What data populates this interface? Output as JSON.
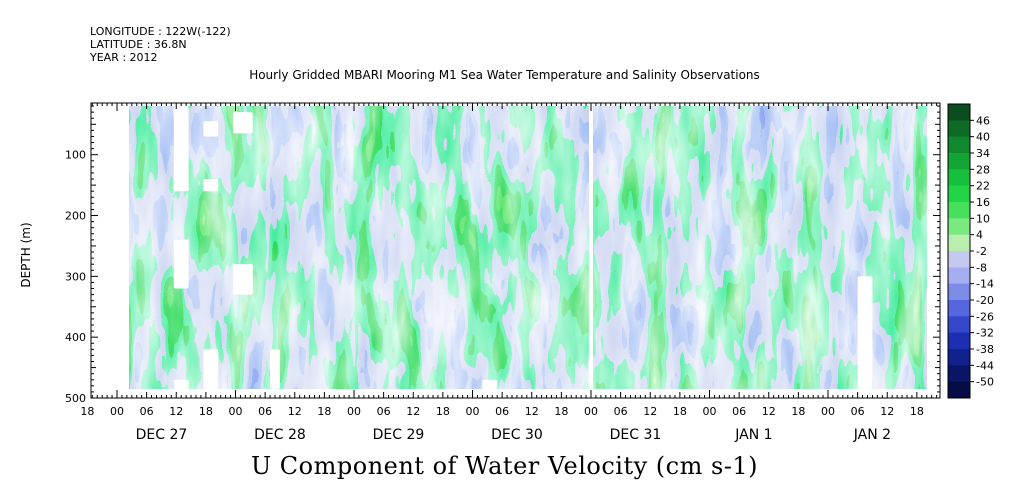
{
  "header": {
    "longitude": "LONGITUDE : 122W(-122)",
    "latitude": "LATITUDE : 36.8N",
    "year": "YEAR : 2012"
  },
  "chart_data": {
    "type": "heatmap",
    "title": "Hourly Gridded MBARI Mooring M1 Sea Water Temperature and Salinity Observations",
    "variable_title": "U Component of Water Velocity (cm s-1)",
    "ylabel": "DEPTH (m)",
    "y_axis": {
      "range": [
        500,
        15
      ],
      "inverted": true,
      "ticks": [
        100,
        200,
        300,
        400,
        500
      ]
    },
    "x_axis": {
      "hour_ticks": [
        "00",
        "06",
        "12",
        "18"
      ],
      "days": [
        "DEC 27",
        "DEC 28",
        "DEC 29",
        "DEC 30",
        "DEC 31",
        "JAN  1",
        "JAN  2"
      ],
      "first_hour_label": "00",
      "last_hour_label": "18"
    },
    "colorbar": {
      "levels": [
        46,
        40,
        34,
        28,
        22,
        16,
        10,
        4,
        -2,
        -8,
        -14,
        -20,
        -26,
        -32,
        -38,
        -44,
        -50
      ],
      "colors": [
        "#0a4d1e",
        "#0e6b26",
        "#10892d",
        "#13a535",
        "#17c03c",
        "#22d546",
        "#45e05c",
        "#7ce880",
        "#b9eeb0",
        "#c4c9f0",
        "#a4aef0",
        "#7d8be8",
        "#5566de",
        "#3346cc",
        "#1c2fb0",
        "#10208c",
        "#0a1568",
        "#060c45"
      ]
    }
  }
}
